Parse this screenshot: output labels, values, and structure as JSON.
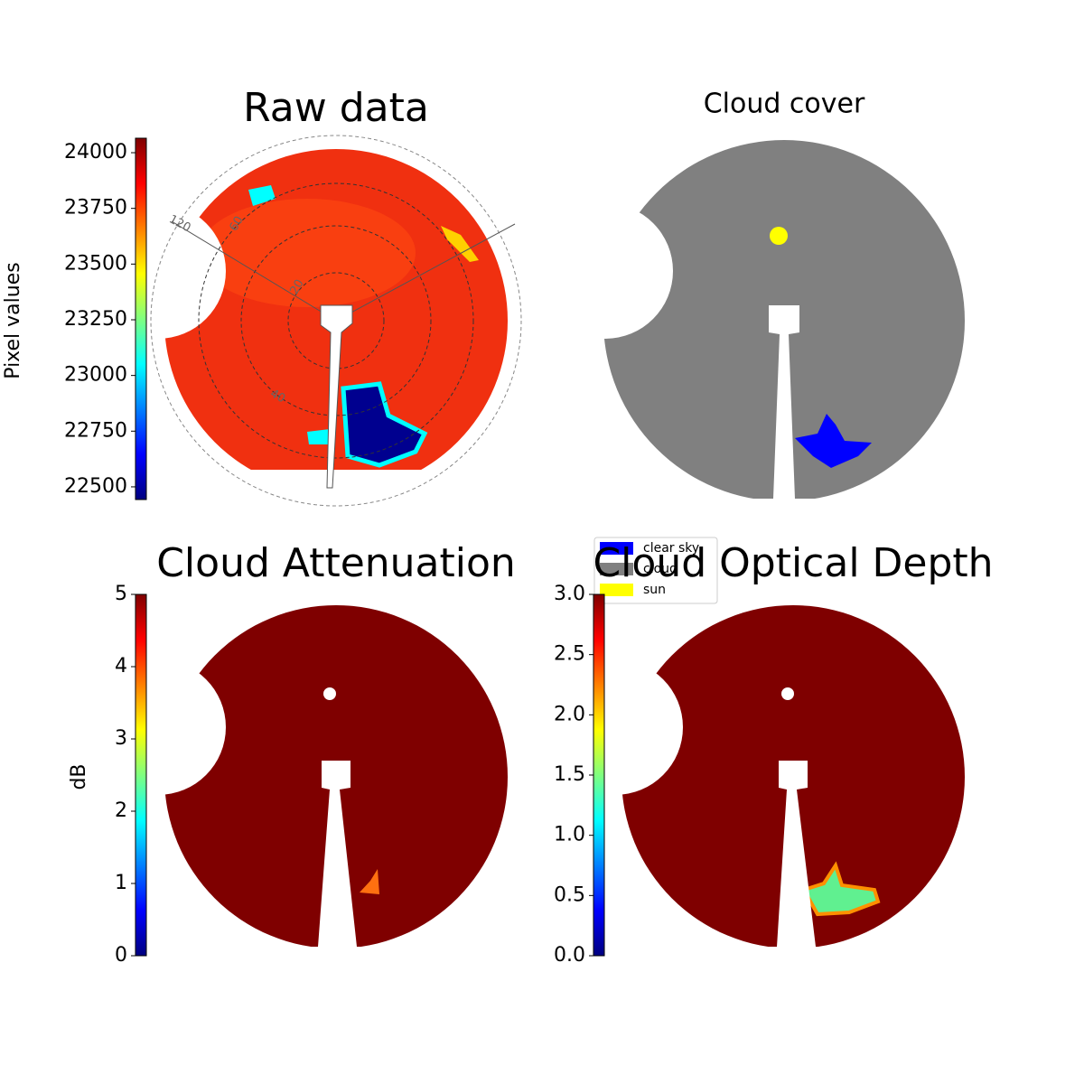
{
  "chart_data": [
    {
      "type": "image",
      "title": "Raw data",
      "ylabel": "Pixel values",
      "ylim": [
        22443,
        24065
      ],
      "yticks": [
        22500,
        22750,
        23000,
        23250,
        23500,
        23750,
        24000
      ],
      "polar_labels": [
        "120",
        "60",
        "20",
        "40"
      ]
    },
    {
      "type": "image",
      "title": "Cloud cover",
      "series": [
        {
          "name": "clear sky",
          "color": "#0000ff"
        },
        {
          "name": "cloud",
          "color": "#808080"
        },
        {
          "name": "sun",
          "color": "#ffff00"
        }
      ]
    },
    {
      "type": "image",
      "title": "Cloud Attenuation",
      "ylabel": "dB",
      "ylim": [
        0,
        5
      ],
      "yticks": [
        0,
        1,
        2,
        3,
        4,
        5
      ]
    },
    {
      "type": "image",
      "title": "Cloud Optical Depth",
      "ylim": [
        0,
        3
      ],
      "yticks": [
        {
          "value": 0,
          "label": "0.0"
        },
        {
          "value": 0.5,
          "label": "0.5"
        },
        {
          "value": 1,
          "label": "1.0"
        },
        {
          "value": 1.5,
          "label": "1.5"
        },
        {
          "value": 2,
          "label": "2.0"
        },
        {
          "value": 2.5,
          "label": "2.5"
        },
        {
          "value": 3,
          "label": "3.0"
        }
      ]
    }
  ]
}
